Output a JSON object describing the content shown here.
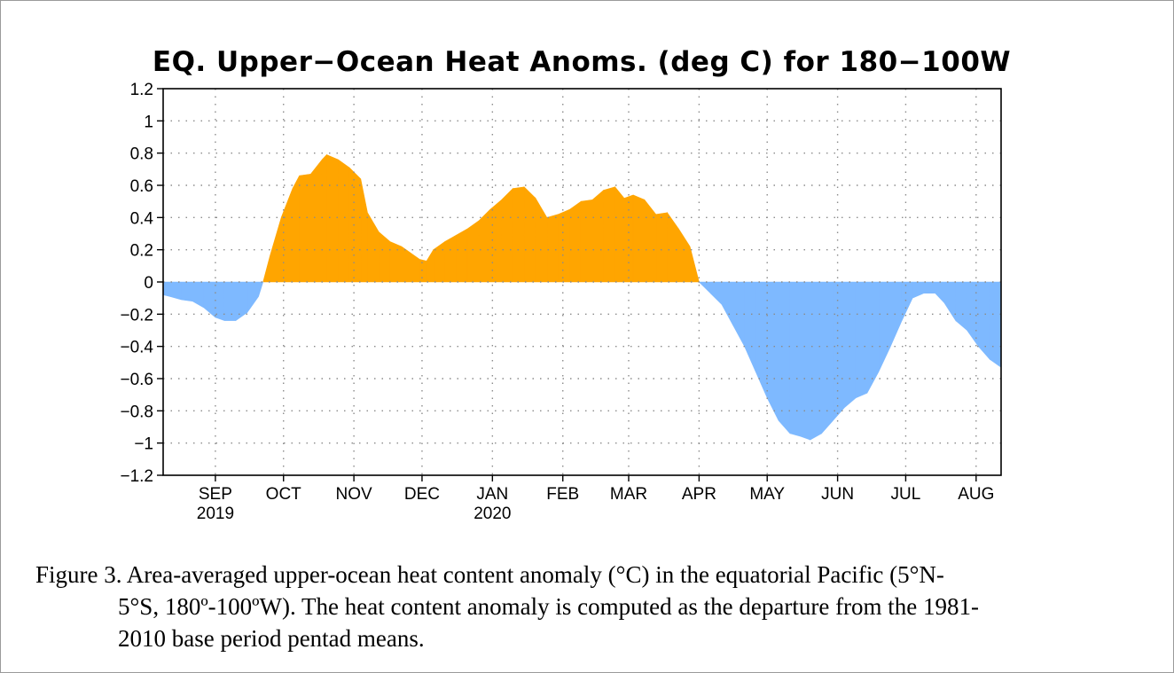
{
  "chart_data": {
    "type": "area",
    "title": "EQ. Upper−Ocean Heat Anoms. (deg C) for 180−100W",
    "xlabel": "",
    "ylabel": "",
    "ylim": [
      -1.2,
      1.2
    ],
    "yticks": [
      {
        "value": 1.2,
        "label": "1.2"
      },
      {
        "value": 1.0,
        "label": "1"
      },
      {
        "value": 0.8,
        "label": "0.8"
      },
      {
        "value": 0.6,
        "label": "0.6"
      },
      {
        "value": 0.4,
        "label": "0.4"
      },
      {
        "value": 0.2,
        "label": "0.2"
      },
      {
        "value": 0.0,
        "label": "0"
      },
      {
        "value": -0.2,
        "label": "−0.2"
      },
      {
        "value": -0.4,
        "label": "−0.4"
      },
      {
        "value": -0.6,
        "label": "−0.6"
      },
      {
        "value": -0.8,
        "label": "−0.8"
      },
      {
        "value": -1.0,
        "label": "−1"
      },
      {
        "value": -1.2,
        "label": "−1.2"
      }
    ],
    "xlim": [
      "2019-08-09",
      "2020-08-12"
    ],
    "xticks": [
      {
        "date": "2019-09-01",
        "label": "SEP",
        "sublabel": "2019"
      },
      {
        "date": "2019-10-01",
        "label": "OCT",
        "sublabel": ""
      },
      {
        "date": "2019-11-01",
        "label": "NOV",
        "sublabel": ""
      },
      {
        "date": "2019-12-01",
        "label": "DEC",
        "sublabel": ""
      },
      {
        "date": "2020-01-01",
        "label": "JAN",
        "sublabel": "2020"
      },
      {
        "date": "2020-02-01",
        "label": "FEB",
        "sublabel": ""
      },
      {
        "date": "2020-03-01",
        "label": "MAR",
        "sublabel": ""
      },
      {
        "date": "2020-04-01",
        "label": "APR",
        "sublabel": ""
      },
      {
        "date": "2020-05-01",
        "label": "MAY",
        "sublabel": ""
      },
      {
        "date": "2020-06-01",
        "label": "JUN",
        "sublabel": ""
      },
      {
        "date": "2020-07-01",
        "label": "JUL",
        "sublabel": ""
      },
      {
        "date": "2020-08-01",
        "label": "AUG",
        "sublabel": ""
      }
    ],
    "grid": true,
    "positive_color": "#ffa500",
    "negative_color": "#7eb9ff",
    "series": [
      {
        "points": [
          [
            "2019-08-09",
            -0.08
          ],
          [
            "2019-08-12",
            -0.09
          ],
          [
            "2019-08-17",
            -0.11
          ],
          [
            "2019-08-22",
            -0.12
          ],
          [
            "2019-08-27",
            -0.16
          ],
          [
            "2019-09-01",
            -0.22
          ],
          [
            "2019-09-05",
            -0.24
          ],
          [
            "2019-09-10",
            -0.24
          ],
          [
            "2019-09-15",
            -0.19
          ],
          [
            "2019-09-20",
            -0.09
          ],
          [
            "2019-09-22",
            0.0
          ],
          [
            "2019-09-25",
            0.16
          ],
          [
            "2019-09-30",
            0.4
          ],
          [
            "2019-10-05",
            0.58
          ],
          [
            "2019-10-08",
            0.66
          ],
          [
            "2019-10-13",
            0.67
          ],
          [
            "2019-10-18",
            0.76
          ],
          [
            "2019-10-20",
            0.79
          ],
          [
            "2019-10-25",
            0.76
          ],
          [
            "2019-10-30",
            0.71
          ],
          [
            "2019-11-04",
            0.64
          ],
          [
            "2019-11-07",
            0.43
          ],
          [
            "2019-11-12",
            0.31
          ],
          [
            "2019-11-17",
            0.25
          ],
          [
            "2019-11-22",
            0.22
          ],
          [
            "2019-11-26",
            0.18
          ],
          [
            "2019-11-30",
            0.14
          ],
          [
            "2019-12-03",
            0.13
          ],
          [
            "2019-12-06",
            0.2
          ],
          [
            "2019-12-11",
            0.25
          ],
          [
            "2019-12-16",
            0.29
          ],
          [
            "2019-12-21",
            0.33
          ],
          [
            "2019-12-26",
            0.38
          ],
          [
            "2019-12-31",
            0.45
          ],
          [
            "2020-01-05",
            0.51
          ],
          [
            "2020-01-10",
            0.58
          ],
          [
            "2020-01-15",
            0.59
          ],
          [
            "2020-01-20",
            0.52
          ],
          [
            "2020-01-25",
            0.4
          ],
          [
            "2020-01-30",
            0.42
          ],
          [
            "2020-02-04",
            0.45
          ],
          [
            "2020-02-09",
            0.5
          ],
          [
            "2020-02-14",
            0.51
          ],
          [
            "2020-02-19",
            0.57
          ],
          [
            "2020-02-24",
            0.59
          ],
          [
            "2020-02-28",
            0.52
          ],
          [
            "2020-03-03",
            0.54
          ],
          [
            "2020-03-08",
            0.51
          ],
          [
            "2020-03-13",
            0.42
          ],
          [
            "2020-03-18",
            0.43
          ],
          [
            "2020-03-23",
            0.33
          ],
          [
            "2020-03-28",
            0.22
          ],
          [
            "2020-04-01",
            0.0
          ],
          [
            "2020-04-06",
            -0.07
          ],
          [
            "2020-04-11",
            -0.14
          ],
          [
            "2020-04-16",
            -0.27
          ],
          [
            "2020-04-21",
            -0.4
          ],
          [
            "2020-04-26",
            -0.56
          ],
          [
            "2020-05-01",
            -0.72
          ],
          [
            "2020-05-06",
            -0.86
          ],
          [
            "2020-05-11",
            -0.94
          ],
          [
            "2020-05-16",
            -0.96
          ],
          [
            "2020-05-20",
            -0.98
          ],
          [
            "2020-05-25",
            -0.94
          ],
          [
            "2020-05-30",
            -0.86
          ],
          [
            "2020-06-04",
            -0.78
          ],
          [
            "2020-06-09",
            -0.72
          ],
          [
            "2020-06-14",
            -0.69
          ],
          [
            "2020-06-19",
            -0.56
          ],
          [
            "2020-06-24",
            -0.41
          ],
          [
            "2020-06-29",
            -0.25
          ],
          [
            "2020-07-04",
            -0.1
          ],
          [
            "2020-07-09",
            -0.07
          ],
          [
            "2020-07-14",
            -0.07
          ],
          [
            "2020-07-18",
            -0.13
          ],
          [
            "2020-07-23",
            -0.24
          ],
          [
            "2020-07-28",
            -0.3
          ],
          [
            "2020-08-02",
            -0.4
          ],
          [
            "2020-08-07",
            -0.48
          ],
          [
            "2020-08-12",
            -0.53
          ]
        ]
      }
    ]
  },
  "caption": {
    "line1": "Figure 3. Area-averaged upper-ocean heat content anomaly (°C) in the equatorial Pacific (5°N-",
    "line2": "5°S, 180º-100ºW). The heat content anomaly is computed as the departure from the 1981-",
    "line3": "2010 base period pentad means."
  }
}
